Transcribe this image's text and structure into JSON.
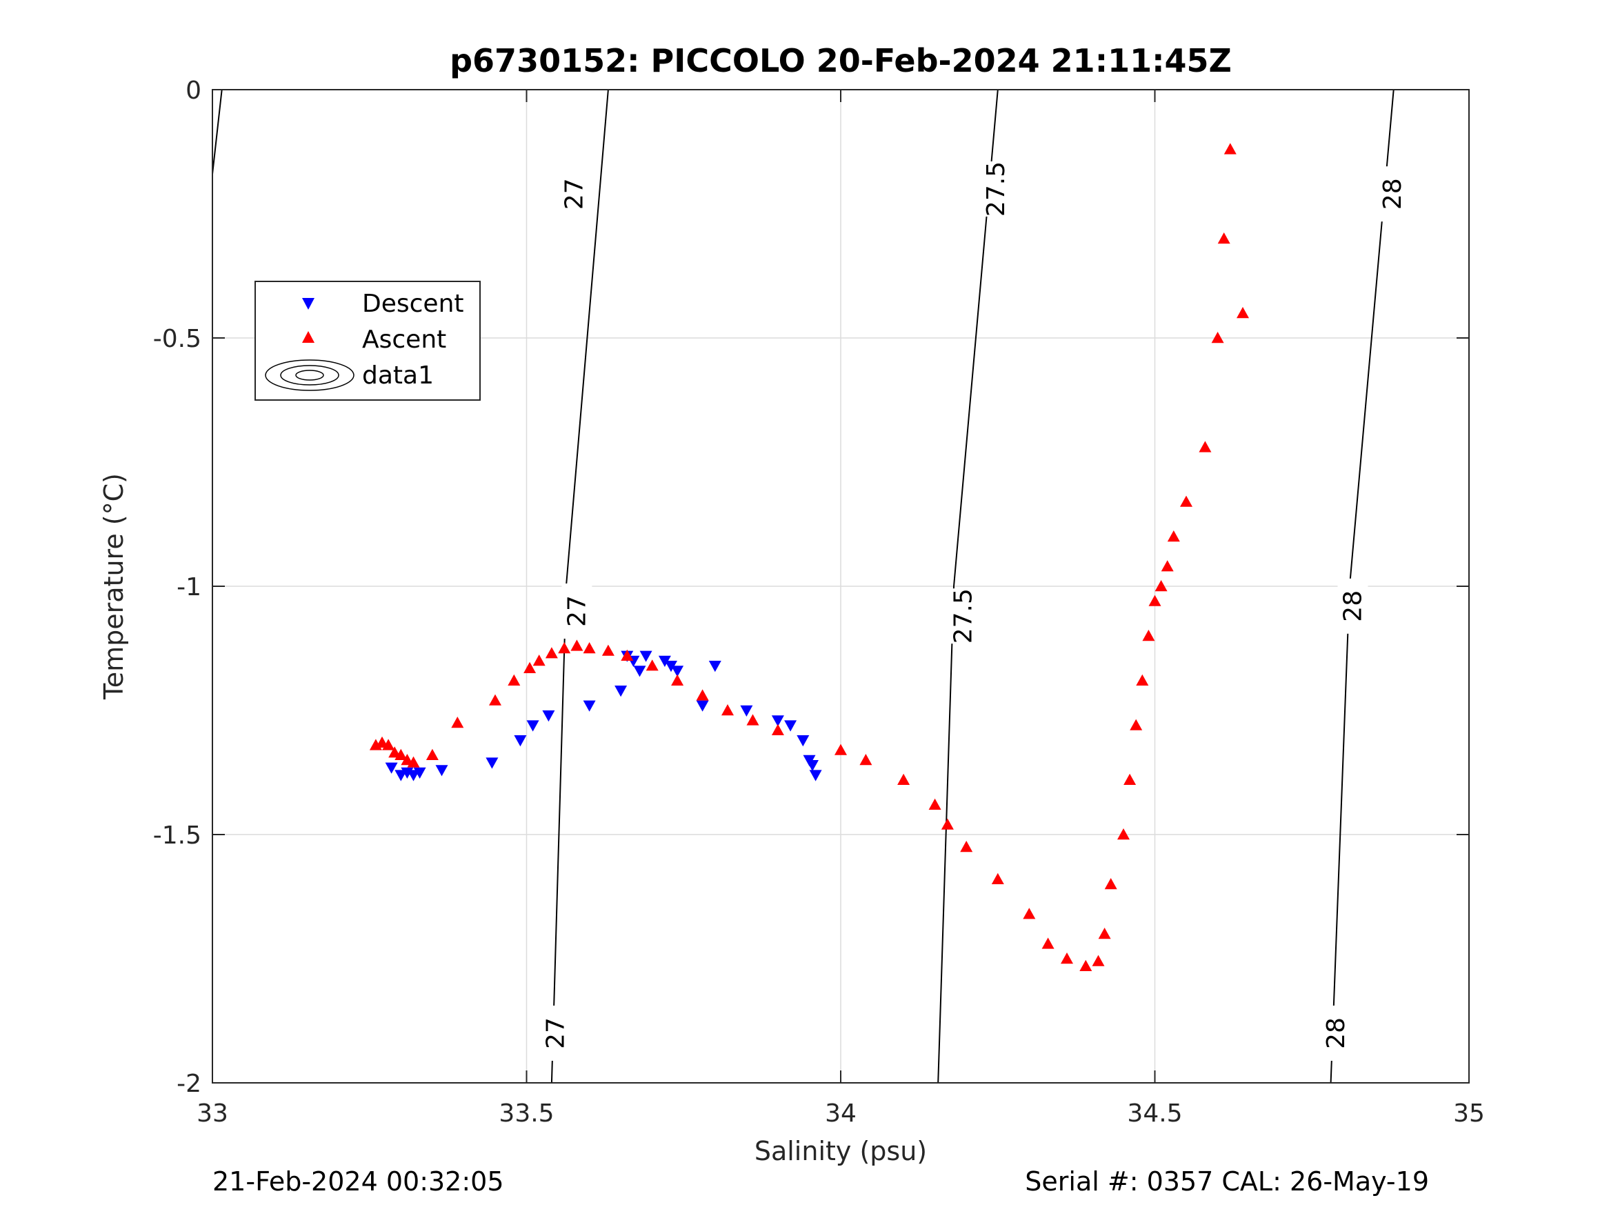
{
  "chart_data": {
    "type": "scatter",
    "title": "p6730152: PICCOLO 20-Feb-2024 21:11:45Z",
    "xlabel": "Salinity (psu)",
    "ylabel": "Temperature (°C)",
    "xlim": [
      33,
      35
    ],
    "ylim": [
      -2,
      0
    ],
    "xticks": [
      33,
      33.5,
      34,
      34.5,
      35
    ],
    "xtick_labels": [
      "33",
      "33.5",
      "34",
      "34.5",
      "35"
    ],
    "yticks": [
      0,
      -0.5,
      -1,
      -1.5,
      -2
    ],
    "ytick_labels": [
      "0",
      "-0.5",
      "-1",
      "-1.5",
      "-2"
    ],
    "grid": true,
    "legend": {
      "placement": "upper-left",
      "entries": [
        {
          "label": "Descent",
          "marker": "triangle-down",
          "color": "#0000ff"
        },
        {
          "label": "Ascent",
          "marker": "triangle-up",
          "color": "#ff0000"
        },
        {
          "label": "data1",
          "marker": "contour",
          "color": "#000000"
        }
      ]
    },
    "footer_left": "21-Feb-2024 00:32:05",
    "footer_right": "Serial #: 0357  CAL: 26-May-19",
    "isopycnals": [
      {
        "label": "",
        "points": [
          [
            33.0,
            -0.17
          ],
          [
            33.015,
            0.0
          ]
        ],
        "label_positions": []
      },
      {
        "label": "27",
        "points": [
          [
            33.54,
            -2.0
          ],
          [
            33.563,
            -1.0
          ],
          [
            33.63,
            0.0
          ]
        ],
        "label_positions": [
          [
            33.546,
            -1.9
          ],
          [
            33.576,
            -0.21
          ],
          [
            33.58,
            -1.05
          ]
        ]
      },
      {
        "label": "27.5",
        "points": [
          [
            34.155,
            -2.0
          ],
          [
            34.18,
            -1.0
          ],
          [
            34.25,
            0.0
          ]
        ],
        "label_positions": [
          [
            34.195,
            -1.06
          ],
          [
            34.247,
            -0.2
          ]
        ]
      },
      {
        "label": "28",
        "points": [
          [
            34.78,
            -2.0
          ],
          [
            34.81,
            -1.0
          ],
          [
            34.88,
            0.0
          ]
        ],
        "label_positions": [
          [
            34.788,
            -1.9
          ],
          [
            34.815,
            -1.04
          ],
          [
            34.878,
            -0.21
          ]
        ]
      }
    ],
    "series": [
      {
        "name": "Descent",
        "marker": "triangle-down",
        "color": "#0000ff",
        "x": [
          33.285,
          33.3,
          33.31,
          33.32,
          33.33,
          33.365,
          33.445,
          33.49,
          33.51,
          33.535,
          33.6,
          33.65,
          33.66,
          33.67,
          33.68,
          33.69,
          33.72,
          33.73,
          33.74,
          33.78,
          33.8,
          33.85,
          33.9,
          33.92,
          33.94,
          33.95,
          33.955,
          33.96
        ],
        "y": [
          -1.365,
          -1.38,
          -1.375,
          -1.38,
          -1.375,
          -1.37,
          -1.355,
          -1.31,
          -1.28,
          -1.26,
          -1.24,
          -1.21,
          -1.14,
          -1.15,
          -1.17,
          -1.14,
          -1.15,
          -1.16,
          -1.17,
          -1.24,
          -1.16,
          -1.25,
          -1.27,
          -1.28,
          -1.31,
          -1.35,
          -1.36,
          -1.38
        ]
      },
      {
        "name": "Ascent",
        "marker": "triangle-up",
        "color": "#ff0000",
        "x": [
          33.26,
          33.27,
          33.28,
          33.29,
          33.3,
          33.31,
          33.32,
          33.35,
          33.39,
          33.45,
          33.48,
          33.505,
          33.52,
          33.54,
          33.56,
          33.58,
          33.6,
          33.63,
          33.66,
          33.7,
          33.74,
          33.78,
          33.82,
          33.86,
          33.9,
          34.0,
          34.04,
          34.1,
          34.15,
          34.17,
          34.2,
          34.25,
          34.3,
          34.33,
          34.36,
          34.39,
          34.41,
          34.42,
          34.43,
          34.45,
          34.46,
          34.47,
          34.48,
          34.49,
          34.5,
          34.51,
          34.52,
          34.53,
          34.55,
          34.58,
          34.6,
          34.61,
          34.62,
          34.64
        ],
        "y": [
          -1.32,
          -1.315,
          -1.32,
          -1.335,
          -1.34,
          -1.35,
          -1.355,
          -1.34,
          -1.275,
          -1.23,
          -1.19,
          -1.165,
          -1.15,
          -1.135,
          -1.125,
          -1.12,
          -1.125,
          -1.13,
          -1.14,
          -1.16,
          -1.19,
          -1.22,
          -1.25,
          -1.27,
          -1.29,
          -1.33,
          -1.35,
          -1.39,
          -1.44,
          -1.48,
          -1.525,
          -1.59,
          -1.66,
          -1.72,
          -1.75,
          -1.765,
          -1.755,
          -1.7,
          -1.6,
          -1.5,
          -1.39,
          -1.28,
          -1.19,
          -1.1,
          -1.03,
          -1.0,
          -0.96,
          -0.9,
          -0.83,
          -0.72,
          -0.5,
          -0.3,
          -0.12,
          -0.45
        ]
      }
    ]
  }
}
